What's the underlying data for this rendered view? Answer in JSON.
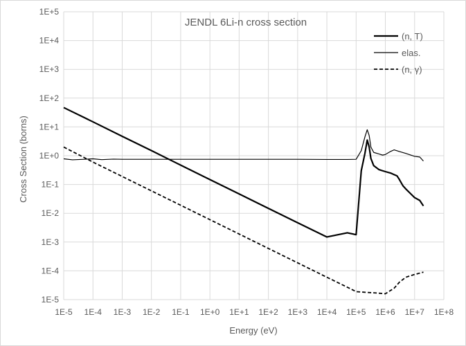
{
  "chart_data": {
    "type": "line",
    "title": "JENDL 6Li-n cross section",
    "xlabel": "Energy (eV)",
    "ylabel": "Cross Section (borns)",
    "x_scale": "log",
    "y_scale": "log",
    "xlim": [
      1e-05,
      100000000.0
    ],
    "ylim": [
      1e-05,
      100000.0
    ],
    "x_tick_labels": [
      "1E-5",
      "1E-4",
      "1E-3",
      "1E-2",
      "1E-1",
      "1E+0",
      "1E+1",
      "1E+2",
      "1E+3",
      "1E+4",
      "1E+5",
      "1E+6",
      "1E+7",
      "1E+8"
    ],
    "y_tick_labels": [
      "1E-5",
      "1E-4",
      "1E-3",
      "1E-2",
      "1E-1",
      "1E+0",
      "1E+1",
      "1E+2",
      "1E+3",
      "1E+4",
      "1E+5"
    ],
    "grid": true,
    "legend_position": "top-right",
    "series": [
      {
        "name": "(n, T)",
        "style": "solid-thick",
        "color": "#000000",
        "x": [
          1e-05,
          0.0001,
          0.001,
          0.01,
          0.1,
          1,
          10,
          100,
          1000,
          10000.0,
          50000.0,
          100000.0,
          150000.0,
          200000.0,
          240000.0,
          280000.0,
          320000.0,
          400000.0,
          600000.0,
          800000.0,
          1000000.0,
          1500000.0,
          2000000.0,
          2500000.0,
          3000000.0,
          4000000.0,
          5000000.0,
          7000000.0,
          10000000.0,
          15000000.0,
          20000000.0
        ],
        "y": [
          47,
          15,
          4.7,
          1.5,
          0.47,
          0.148,
          0.047,
          0.0148,
          0.0047,
          0.0015,
          0.0021,
          0.0018,
          0.3,
          1.2,
          3.5,
          2.0,
          0.8,
          0.45,
          0.33,
          0.3,
          0.28,
          0.25,
          0.22,
          0.2,
          0.15,
          0.09,
          0.07,
          0.05,
          0.035,
          0.028,
          0.018
        ]
      },
      {
        "name": "elas.",
        "style": "solid-thin",
        "color": "#000000",
        "x": [
          1e-05,
          2e-05,
          5e-05,
          0.0001,
          0.0002,
          0.0005,
          0.001,
          0.01,
          0.1,
          1,
          10,
          100,
          1000,
          10000.0,
          50000.0,
          100000.0,
          150000.0,
          200000.0,
          240000.0,
          280000.0,
          320000.0,
          400000.0,
          600000.0,
          800000.0,
          1000000.0,
          1500000.0,
          2000000.0,
          3000000.0,
          5000000.0,
          10000000.0,
          15000000.0,
          20000000.0
        ],
        "y": [
          0.78,
          0.72,
          0.75,
          0.78,
          0.73,
          0.76,
          0.75,
          0.75,
          0.75,
          0.75,
          0.75,
          0.75,
          0.75,
          0.74,
          0.74,
          0.75,
          1.5,
          4.5,
          8.0,
          5.0,
          2.0,
          1.3,
          1.15,
          1.05,
          1.1,
          1.4,
          1.6,
          1.4,
          1.2,
          0.95,
          0.9,
          0.65
        ]
      },
      {
        "name": "(n, γ)",
        "style": "dashed",
        "color": "#000000",
        "x": [
          1e-05,
          0.0001,
          0.001,
          0.01,
          0.1,
          1,
          10,
          100,
          1000,
          10000.0,
          50000.0,
          100000.0,
          200000.0,
          500000.0,
          1000000.0,
          2000000.0,
          3000000.0,
          5000000.0,
          10000000.0,
          20000000.0
        ],
        "y": [
          2.0,
          0.6,
          0.19,
          0.06,
          0.019,
          0.006,
          0.0019,
          0.0006,
          0.00019,
          6e-05,
          2.7e-05,
          1.9e-05,
          1.8e-05,
          1.7e-05,
          1.6e-05,
          2.5e-05,
          4e-05,
          6e-05,
          7.5e-05,
          9e-05
        ]
      }
    ]
  }
}
